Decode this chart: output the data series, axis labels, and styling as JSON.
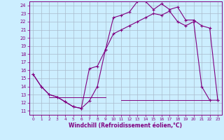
{
  "xlabel": "Windchill (Refroidissement éolien,°C)",
  "background_color": "#cceeff",
  "line_color": "#800080",
  "grid_color": "#aabbcc",
  "xlim": [
    -0.5,
    23.5
  ],
  "ylim": [
    10.5,
    24.5
  ],
  "yticks": [
    11,
    12,
    13,
    14,
    15,
    16,
    17,
    18,
    19,
    20,
    21,
    22,
    23,
    24
  ],
  "xticks": [
    0,
    1,
    2,
    3,
    4,
    5,
    6,
    7,
    8,
    9,
    10,
    11,
    12,
    13,
    14,
    15,
    16,
    17,
    18,
    19,
    20,
    21,
    22,
    23
  ],
  "line1_x": [
    0,
    1,
    2,
    3,
    4,
    5,
    6,
    7,
    8,
    9,
    10,
    11,
    12,
    13,
    14,
    15,
    16,
    17,
    18,
    19,
    20,
    21,
    22,
    23
  ],
  "line1_y": [
    15.5,
    14.0,
    13.0,
    12.7,
    12.1,
    11.5,
    11.3,
    12.2,
    14.0,
    18.5,
    22.5,
    22.8,
    23.2,
    24.5,
    24.5,
    23.5,
    24.2,
    23.5,
    23.8,
    22.2,
    22.2,
    21.5,
    21.2,
    12.3
  ],
  "line2_x": [
    0,
    1,
    2,
    3,
    4,
    5,
    6,
    7,
    8,
    9,
    10,
    11,
    12,
    13,
    14,
    15,
    16,
    17,
    18,
    19,
    20,
    21,
    22,
    23
  ],
  "line2_y": [
    15.5,
    14.0,
    13.0,
    12.7,
    12.1,
    11.5,
    11.3,
    16.2,
    16.5,
    18.5,
    20.5,
    21.0,
    21.5,
    22.0,
    22.5,
    23.0,
    22.8,
    23.3,
    22.0,
    21.5,
    22.0,
    14.0,
    12.3,
    12.3
  ],
  "line3_x": [
    2,
    9
  ],
  "line3_y": [
    12.7,
    12.7
  ],
  "line4_x": [
    11,
    22
  ],
  "line4_y": [
    12.3,
    12.3
  ]
}
